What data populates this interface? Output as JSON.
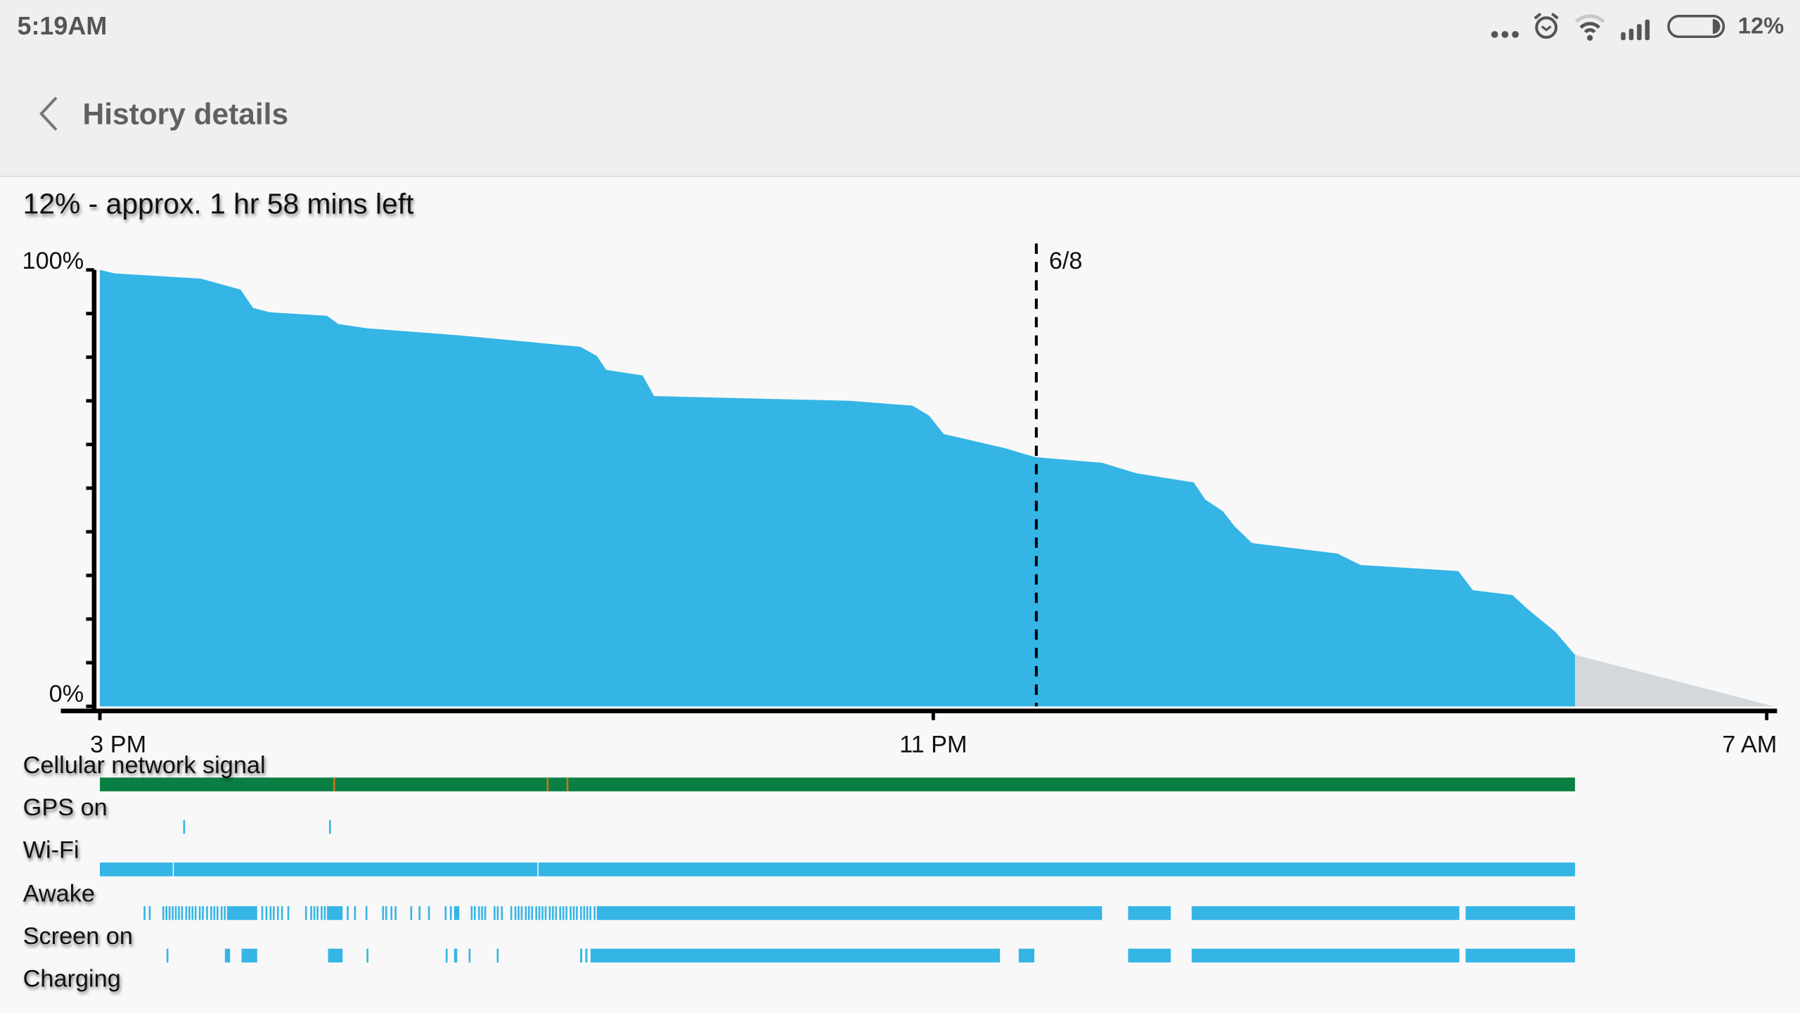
{
  "status_bar": {
    "time": "5:19AM",
    "battery_percent": "12%",
    "battery_level": 0.12,
    "icons": [
      "more-dots-icon",
      "alarm-icon",
      "wifi-icon",
      "cell-signal-icon",
      "battery-icon"
    ]
  },
  "header": {
    "title": "History details",
    "back_icon": "chevron-left-icon"
  },
  "summary": "12% - approx. 1 hr 58 mins left",
  "colors": {
    "battery_fill": "#35b5e5",
    "projection": "#d2d8dc",
    "cellular": "#0a7f43",
    "cellular_weak": "#e06f10",
    "bar": "#35b5e5"
  },
  "chart_data": {
    "type": "area",
    "x_unit": "hours since 3 PM",
    "xlim": [
      0,
      16
    ],
    "ylim": [
      0,
      100
    ],
    "y_tick_labels": [
      "100%",
      "0%"
    ],
    "y_minor_ticks_step": 10,
    "x_ticks": [
      {
        "x": 0,
        "label": "3 PM"
      },
      {
        "x": 8,
        "label": "11 PM"
      },
      {
        "x": 16,
        "label": "7 AM"
      }
    ],
    "day_marker": {
      "x": 9,
      "label": "6/8"
    },
    "battery": [
      [
        0,
        100
      ],
      [
        0.14,
        99.2
      ],
      [
        0.97,
        98
      ],
      [
        1.35,
        95.5
      ],
      [
        1.47,
        91.3
      ],
      [
        1.63,
        90.3
      ],
      [
        2.18,
        89.5
      ],
      [
        2.29,
        87.6
      ],
      [
        2.57,
        86.6
      ],
      [
        3.45,
        85
      ],
      [
        4.61,
        82.4
      ],
      [
        4.77,
        80.3
      ],
      [
        4.86,
        77.1
      ],
      [
        5.21,
        75.8
      ],
      [
        5.32,
        71.1
      ],
      [
        7.2,
        70
      ],
      [
        7.8,
        68.9
      ],
      [
        7.96,
        66.6
      ],
      [
        8.1,
        62.4
      ],
      [
        8.3,
        61.3
      ],
      [
        8.68,
        59.2
      ],
      [
        8.98,
        57.1
      ],
      [
        9.62,
        55.8
      ],
      [
        9.95,
        53.4
      ],
      [
        10.5,
        51.3
      ],
      [
        10.61,
        47.4
      ],
      [
        10.78,
        44.7
      ],
      [
        10.89,
        41.3
      ],
      [
        11.06,
        37.4
      ],
      [
        11.88,
        35
      ],
      [
        12.1,
        32.4
      ],
      [
        13.04,
        31
      ],
      [
        13.18,
        26.6
      ],
      [
        13.56,
        25.5
      ],
      [
        13.7,
        22.4
      ],
      [
        13.97,
        17.1
      ],
      [
        14.16,
        11.8
      ]
    ],
    "projection": [
      [
        14.16,
        11.8
      ],
      [
        16.07,
        0
      ]
    ]
  },
  "tracks": [
    {
      "label": "Cellular network signal",
      "kind": "cellular",
      "spans": [
        [
          0,
          14.16
        ]
      ],
      "weak_ticks": [
        2.24,
        4.29,
        4.48
      ]
    },
    {
      "label": "GPS on",
      "kind": "bar",
      "spans": [],
      "ticks": [
        0.8,
        2.2
      ]
    },
    {
      "label": "Wi-Fi",
      "kind": "bar",
      "spans": [
        [
          0,
          0.7
        ],
        [
          0.71,
          4.2
        ],
        [
          4.21,
          14.16
        ]
      ],
      "ticks": []
    },
    {
      "label": "Awake",
      "kind": "bar",
      "spans": [
        [
          1.22,
          1.51
        ],
        [
          2.18,
          2.33
        ],
        [
          3.4,
          3.45
        ],
        [
          4.77,
          9.62
        ],
        [
          9.87,
          10.28
        ],
        [
          10.48,
          13.05
        ],
        [
          13.11,
          14.16
        ]
      ],
      "ticks": [
        0.42,
        0.47,
        0.6,
        0.63,
        0.66,
        0.69,
        0.72,
        0.75,
        0.78,
        0.82,
        0.85,
        0.88,
        0.91,
        0.95,
        0.98,
        1.02,
        1.06,
        1.09,
        1.12,
        1.16,
        1.19,
        1.55,
        1.59,
        1.63,
        1.66,
        1.7,
        1.74,
        1.8,
        1.97,
        2.02,
        2.05,
        2.08,
        2.12,
        2.15,
        2.37,
        2.44,
        2.55,
        2.71,
        2.74,
        2.79,
        2.83,
        2.98,
        3.06,
        3.15,
        3.31,
        3.36,
        3.56,
        3.59,
        3.63,
        3.66,
        3.69,
        3.78,
        3.81,
        3.85,
        3.94,
        3.98,
        4.01,
        4.04,
        4.08,
        4.11,
        4.14,
        4.18,
        4.21,
        4.24,
        4.27,
        4.31,
        4.34,
        4.37,
        4.41,
        4.44,
        4.47,
        4.51,
        4.54,
        4.57,
        4.61,
        4.64,
        4.67,
        4.7,
        4.74
      ]
    },
    {
      "label": "Screen on",
      "kind": "bar",
      "spans": [
        [
          1.2,
          1.25
        ],
        [
          1.36,
          1.51
        ],
        [
          2.19,
          2.33
        ],
        [
          3.4,
          3.43
        ],
        [
          4.61,
          4.63
        ],
        [
          4.66,
          4.68
        ],
        [
          4.71,
          8.64
        ],
        [
          8.82,
          8.97
        ],
        [
          9.87,
          10.28
        ],
        [
          10.48,
          13.05
        ],
        [
          13.11,
          14.16
        ]
      ],
      "ticks": [
        0.64,
        2.56,
        3.32,
        3.54,
        3.81
      ]
    },
    {
      "label": "Charging",
      "kind": "bar",
      "spans": [],
      "ticks": []
    }
  ]
}
